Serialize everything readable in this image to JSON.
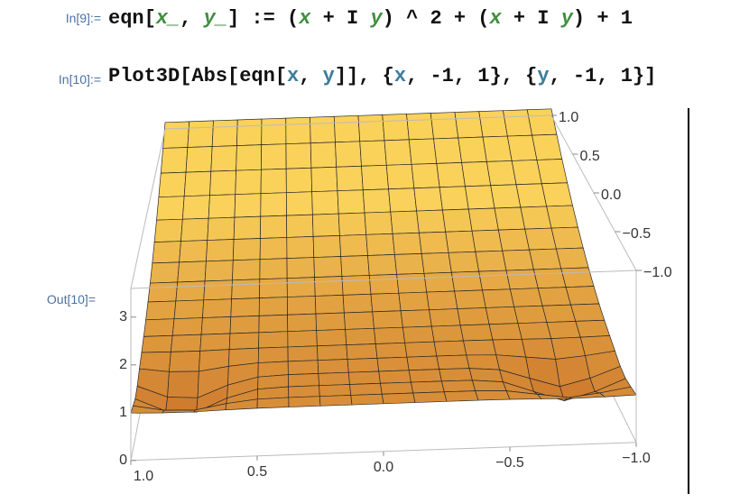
{
  "cells": [
    {
      "label": "In[9]:=",
      "tokens": [
        "eqn[",
        "x_",
        ", ",
        "y_",
        "] := (",
        "x",
        " + I ",
        "y",
        ") ^ 2 + (",
        "x",
        " + I ",
        "y",
        ") + 1"
      ]
    },
    {
      "label": "In[10]:=",
      "tokens": [
        "Plot3D[Abs[eqn[",
        "x",
        ", ",
        "y",
        "]], {",
        "x",
        ", -1, 1}, {",
        "y",
        ", -1, 1}]"
      ]
    }
  ],
  "output": {
    "label": "Out[10]=",
    "plot": {
      "x_ticks": [
        "1.0",
        "0.5",
        "0.0",
        "−0.5",
        "−1.0"
      ],
      "y_ticks": [
        "1.0",
        "0.5",
        "0.0",
        "−0.5",
        "−1.0"
      ],
      "z_ticks": [
        "0",
        "1",
        "2",
        "3"
      ]
    }
  }
}
